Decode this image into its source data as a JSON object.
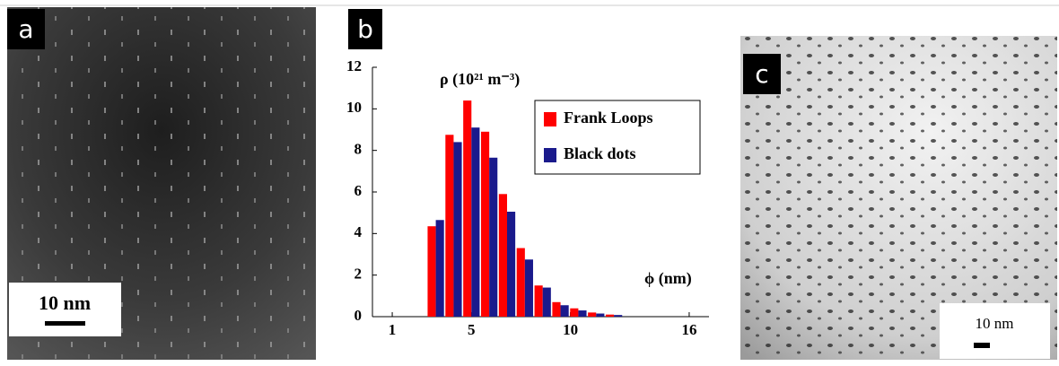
{
  "panels": {
    "a": {
      "label": "a",
      "scale_bar": "10 nm"
    },
    "b": {
      "label": "b"
    },
    "c": {
      "label": "c",
      "scale_bar": "10 nm"
    }
  },
  "chart_data": {
    "type": "bar",
    "y_label": "ρ (10²¹ m⁻³)",
    "x_label": "ϕ (nm)",
    "x": [
      3.2,
      4.1,
      5.0,
      5.9,
      6.8,
      7.7,
      8.6,
      9.5,
      10.4,
      11.3,
      12.2
    ],
    "series": [
      {
        "name": "Frank Loops",
        "color": "#ff0000",
        "values": [
          4.35,
          8.75,
          10.4,
          8.9,
          5.9,
          3.3,
          1.5,
          0.7,
          0.4,
          0.2,
          0.1
        ]
      },
      {
        "name": "Black dots",
        "color": "#1a1a8c",
        "values": [
          4.65,
          8.4,
          9.1,
          7.65,
          5.05,
          2.75,
          1.4,
          0.55,
          0.3,
          0.15,
          0.08
        ]
      }
    ],
    "xlim": [
      0,
      17
    ],
    "xticks": [
      1,
      5,
      10,
      16
    ],
    "ylim": [
      0,
      12
    ],
    "yticks": [
      0,
      2,
      4,
      6,
      8,
      10,
      12
    ],
    "legend": "upper right"
  }
}
